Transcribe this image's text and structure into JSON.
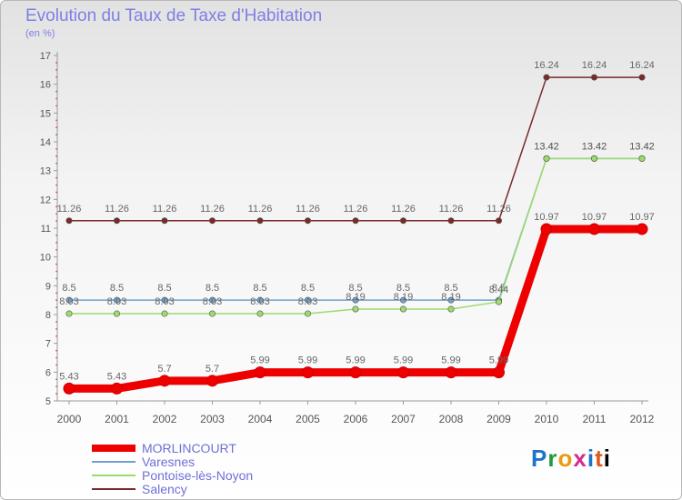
{
  "chart_data": {
    "type": "line",
    "title": "Evolution du Taux de Taxe d'Habitation",
    "subtitle": "(en %)",
    "categories": [
      "2000",
      "2001",
      "2002",
      "2003",
      "2004",
      "2005",
      "2006",
      "2007",
      "2008",
      "2009",
      "2010",
      "2011",
      "2012"
    ],
    "ylim": [
      5,
      17
    ],
    "yticks": [
      5,
      6,
      7,
      8,
      9,
      10,
      11,
      12,
      13,
      14,
      15,
      16,
      17
    ],
    "grid": false,
    "series": [
      {
        "name": "Salency",
        "color": "#7a2a2a",
        "values": [
          11.26,
          11.26,
          11.26,
          11.26,
          11.26,
          11.26,
          11.26,
          11.26,
          11.26,
          11.26,
          16.24,
          16.24,
          16.24
        ],
        "labels": [
          "11.26",
          "11.26",
          "11.26",
          "11.26",
          "11.26",
          "11.26",
          "11.26",
          "11.26",
          "11.26",
          "11.26",
          "16.24",
          "16.24",
          "16.24"
        ]
      },
      {
        "name": "Varesnes",
        "color": "#6fa0cc",
        "values": [
          8.5,
          8.5,
          8.5,
          8.5,
          8.5,
          8.5,
          8.5,
          8.5,
          8.5,
          8.5,
          13.42,
          13.42,
          13.42
        ],
        "labels": [
          "8.5",
          "8.5",
          "8.5",
          "8.5",
          "8.5",
          "8.5",
          "8.5",
          "8.5",
          "8.5",
          "8.5",
          "13.42",
          "13.42",
          "13.42"
        ]
      },
      {
        "name": "Pontoise-lès-Noyon",
        "color": "#9cdc6a",
        "values": [
          8.03,
          8.03,
          8.03,
          8.03,
          8.03,
          8.03,
          8.19,
          8.19,
          8.19,
          8.44,
          13.42,
          13.42,
          13.42
        ],
        "labels": [
          "8.03",
          "8.03",
          "8.03",
          "8.03",
          "8.03",
          "8.03",
          "8.19",
          "8.19",
          "8.19",
          "8.44",
          "13.42",
          "13.42",
          "13.42"
        ]
      },
      {
        "name": "MORLINCOURT",
        "color": "#ee0000",
        "values": [
          5.43,
          5.43,
          5.7,
          5.7,
          5.99,
          5.99,
          5.99,
          5.99,
          5.99,
          5.99,
          10.97,
          10.97,
          10.97
        ],
        "labels": [
          "5.43",
          "5.43",
          "5.7",
          "5.7",
          "5.99",
          "5.99",
          "5.99",
          "5.99",
          "5.99",
          "5.99",
          "10.97",
          "10.97",
          "10.97"
        ]
      }
    ]
  },
  "legend": [
    {
      "name": "MORLINCOURT",
      "color": "#ee0000"
    },
    {
      "name": "Varesnes",
      "color": "#6fa0cc"
    },
    {
      "name": "Pontoise-lès-Noyon",
      "color": "#9cdc6a"
    },
    {
      "name": "Salency",
      "color": "#7a2a2a"
    }
  ],
  "logo": {
    "letters": [
      "P",
      "r",
      "o",
      "x",
      "i",
      "t",
      "i"
    ]
  }
}
